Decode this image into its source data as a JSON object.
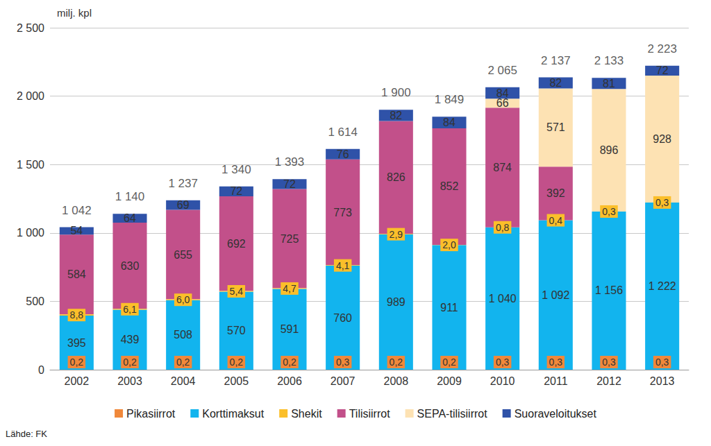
{
  "chart_data": {
    "type": "bar",
    "stacked": true,
    "grid": true,
    "legend": "bottom",
    "data_labels": true,
    "y_label": "milj. kpl",
    "source": "Lähde: FK",
    "categories": [
      "2002",
      "2003",
      "2004",
      "2005",
      "2006",
      "2007",
      "2008",
      "2009",
      "2010",
      "2011",
      "2012",
      "2013"
    ],
    "ylim": [
      0,
      2500
    ],
    "yticks": [
      0,
      500,
      {
        "value": 1000,
        "label": "1 000"
      },
      {
        "value": 1500,
        "label": "1 500"
      },
      {
        "value": 2000,
        "label": "2 000"
      },
      {
        "value": 2500,
        "label": "2 500"
      }
    ],
    "series": [
      {
        "name": "Pikasiirrot",
        "color": "#f0883a",
        "values": [
          0.2,
          0.2,
          0.2,
          0.2,
          0.2,
          0.3,
          0.2,
          0.2,
          0.3,
          0.3,
          0.3,
          0.3
        ],
        "value_labels": [
          "0,2",
          "0,2",
          "0,2",
          "0,2",
          "0,2",
          "0,3",
          "0,2",
          "0,2",
          "0,3",
          "0,3",
          "0,3",
          "0,3"
        ]
      },
      {
        "name": "Korttimaksut",
        "color": "#12b4ee",
        "values": [
          395,
          439,
          508,
          570,
          591,
          760,
          989,
          911,
          1040,
          1092,
          1156,
          1222
        ],
        "value_labels": [
          "395",
          "439",
          "508",
          "570",
          "591",
          "760",
          "989",
          "911",
          "1 040",
          "1 092",
          "1 156",
          "1 222"
        ]
      },
      {
        "name": "Shekit",
        "color": "#fbbf2a",
        "values": [
          8.8,
          6.1,
          6.0,
          5.4,
          4.7,
          4.1,
          2.9,
          2.0,
          0.8,
          0.4,
          0.3,
          0.3
        ],
        "value_labels": [
          "8,8",
          "6,1",
          "6,0",
          "5,4",
          "4,7",
          "4,1",
          "2,9",
          "2,0",
          "0,8",
          "0,4",
          "0,3",
          "0,3"
        ]
      },
      {
        "name": "Tilisiirrot",
        "color": "#c2508a",
        "values": [
          584,
          630,
          655,
          692,
          725,
          773,
          826,
          852,
          874,
          392,
          null,
          null
        ]
      },
      {
        "name": "SEPA-tilisiirrot",
        "color": "#fde2b3",
        "values": [
          null,
          null,
          null,
          null,
          null,
          null,
          null,
          null,
          66,
          571,
          896,
          928
        ]
      },
      {
        "name": "Suoraveloitukset",
        "color": "#2f52a8",
        "values": [
          54,
          64,
          69,
          72,
          72,
          76,
          82,
          84,
          84,
          82,
          81,
          72
        ]
      }
    ],
    "totals": {
      "values": [
        1042,
        1140,
        1237,
        1340,
        1393,
        1614,
        1900,
        1849,
        2065,
        2137,
        2133,
        2223
      ],
      "value_labels": [
        "1 042",
        "1 140",
        "1 237",
        "1 340",
        "1 393",
        "1 614",
        "1 900",
        "1 849",
        "2 065",
        "2 137",
        "2 133",
        "2 223"
      ]
    }
  }
}
